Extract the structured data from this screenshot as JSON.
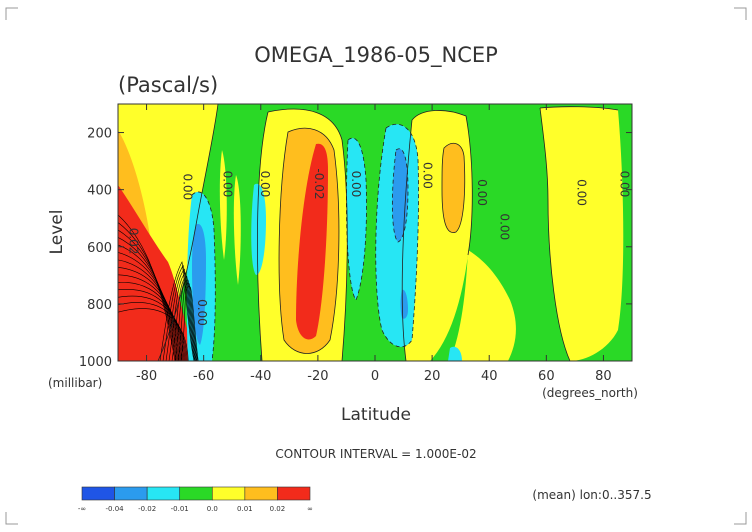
{
  "chart_data": {
    "type": "heatmap",
    "title": "OMEGA_1986-05_NCEP",
    "subtitle": "(Pascal/s)",
    "xlabel": "Latitude",
    "ylabel": "Level",
    "x_units": "(degrees_north)",
    "y_units": "(millibar)",
    "xlim": [
      -90,
      90
    ],
    "ylim": [
      1000,
      100
    ],
    "x_ticks": [
      -80,
      -60,
      -40,
      -20,
      0,
      20,
      40,
      60,
      80
    ],
    "y_ticks": [
      200,
      400,
      600,
      800,
      1000
    ],
    "contour_interval_text": "CONTOUR INTERVAL = 1.000E-02",
    "footnote": "(mean) lon:0..357.5",
    "legend": {
      "colors": [
        "#1f55e6",
        "#2b9bee",
        "#27e6f4",
        "#2ad926",
        "#ffff2a",
        "#ffbe1e",
        "#f22b1b"
      ],
      "labels": [
        "-∞",
        "-0.04",
        "-0.02",
        "-0.01",
        "0.0",
        "0.01",
        "0.02",
        "∞"
      ]
    },
    "contour_labels": [
      {
        "text": "0.00",
        "lat": -62,
        "lev": 830
      },
      {
        "text": "0.00",
        "lat": -53,
        "lev": 380
      },
      {
        "text": "0.00",
        "lat": -40,
        "lev": 380
      },
      {
        "text": "-0.02",
        "lat": -21,
        "lev": 380
      },
      {
        "text": "0.00",
        "lat": -8,
        "lev": 380
      },
      {
        "text": "0.00",
        "lat": 17,
        "lev": 350
      },
      {
        "text": "0.00",
        "lat": 36,
        "lev": 410
      },
      {
        "text": "0.00",
        "lat": 44,
        "lev": 530
      },
      {
        "text": "0.00",
        "lat": 71,
        "lev": 410
      },
      {
        "text": "0.00",
        "lat": 86,
        "lev": 380
      },
      {
        "text": "0.02",
        "lat": -86,
        "lev": 580
      },
      {
        "text": "0.00",
        "lat": -67,
        "lev": 390
      }
    ]
  }
}
